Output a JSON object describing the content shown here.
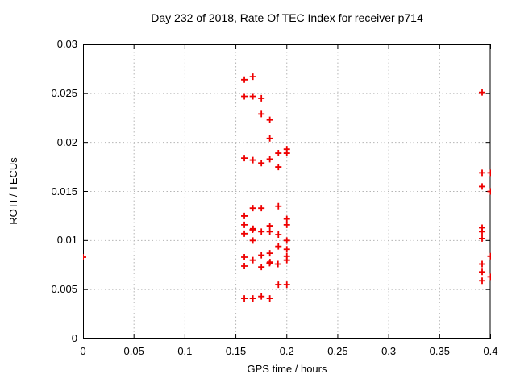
{
  "chart_data": {
    "type": "scatter",
    "title": "Day 232 of 2018, Rate Of TEC Index for receiver p714",
    "xlabel": "GPS time / hours",
    "ylabel": "ROTI / TECUs",
    "xlim": [
      0,
      0.4
    ],
    "ylim": [
      0,
      0.03
    ],
    "xticks": [
      0,
      0.05,
      0.1,
      0.15,
      0.2,
      0.25,
      0.3,
      0.35,
      0.4
    ],
    "xtick_labels": [
      "0",
      "0.05",
      "0.1",
      "0.15",
      "0.2",
      "0.25",
      "0.3",
      "0.35",
      "0.4"
    ],
    "yticks": [
      0,
      0.005,
      0.01,
      0.015,
      0.02,
      0.025,
      0.03
    ],
    "ytick_labels": [
      "0",
      "0.005",
      "0.01",
      "0.015",
      "0.02",
      "0.025",
      "0.03"
    ],
    "grid": true,
    "legend": "none",
    "marker": "plus",
    "marker_color": "#ee0000",
    "grid_color": "#b5b5b5",
    "border_color": "#000000",
    "points": [
      [
        0.0,
        0.0083
      ],
      [
        0.1583,
        0.0264
      ],
      [
        0.1583,
        0.0247
      ],
      [
        0.1583,
        0.0184
      ],
      [
        0.1583,
        0.0125
      ],
      [
        0.1583,
        0.0116
      ],
      [
        0.1583,
        0.0107
      ],
      [
        0.1583,
        0.0083
      ],
      [
        0.1583,
        0.0074
      ],
      [
        0.1583,
        0.0041
      ],
      [
        0.1667,
        0.0267
      ],
      [
        0.1667,
        0.0247
      ],
      [
        0.1667,
        0.0182
      ],
      [
        0.1667,
        0.0133
      ],
      [
        0.1665,
        0.0111
      ],
      [
        0.1669,
        0.0112
      ],
      [
        0.1667,
        0.01
      ],
      [
        0.1667,
        0.008
      ],
      [
        0.1667,
        0.0041
      ],
      [
        0.175,
        0.0245
      ],
      [
        0.175,
        0.0229
      ],
      [
        0.175,
        0.0179
      ],
      [
        0.175,
        0.0133
      ],
      [
        0.175,
        0.0109
      ],
      [
        0.175,
        0.0085
      ],
      [
        0.175,
        0.0073
      ],
      [
        0.175,
        0.0043
      ],
      [
        0.1833,
        0.0223
      ],
      [
        0.1833,
        0.0204
      ],
      [
        0.1833,
        0.0183
      ],
      [
        0.1833,
        0.0115
      ],
      [
        0.1833,
        0.0109
      ],
      [
        0.1833,
        0.0087
      ],
      [
        0.1831,
        0.0077
      ],
      [
        0.1835,
        0.0078
      ],
      [
        0.1833,
        0.0041
      ],
      [
        0.1917,
        0.0189
      ],
      [
        0.1917,
        0.0175
      ],
      [
        0.1917,
        0.0135
      ],
      [
        0.1917,
        0.0106
      ],
      [
        0.1917,
        0.0094
      ],
      [
        0.1913,
        0.0076
      ],
      [
        0.1917,
        0.0055
      ],
      [
        0.2,
        0.0193
      ],
      [
        0.2,
        0.0189
      ],
      [
        0.2,
        0.0122
      ],
      [
        0.2,
        0.0116
      ],
      [
        0.2,
        0.01
      ],
      [
        0.2,
        0.0091
      ],
      [
        0.2,
        0.0084
      ],
      [
        0.2,
        0.008
      ],
      [
        0.2,
        0.0055
      ],
      [
        0.3917,
        0.0251
      ],
      [
        0.3917,
        0.0169
      ],
      [
        0.3917,
        0.0155
      ],
      [
        0.3917,
        0.0113
      ],
      [
        0.3917,
        0.0109
      ],
      [
        0.3917,
        0.0102
      ],
      [
        0.3917,
        0.0076
      ],
      [
        0.3917,
        0.0068
      ],
      [
        0.3917,
        0.0059
      ],
      [
        0.4,
        0.0169
      ],
      [
        0.4,
        0.015
      ],
      [
        0.4,
        0.0084
      ],
      [
        0.4,
        0.0063
      ]
    ]
  }
}
